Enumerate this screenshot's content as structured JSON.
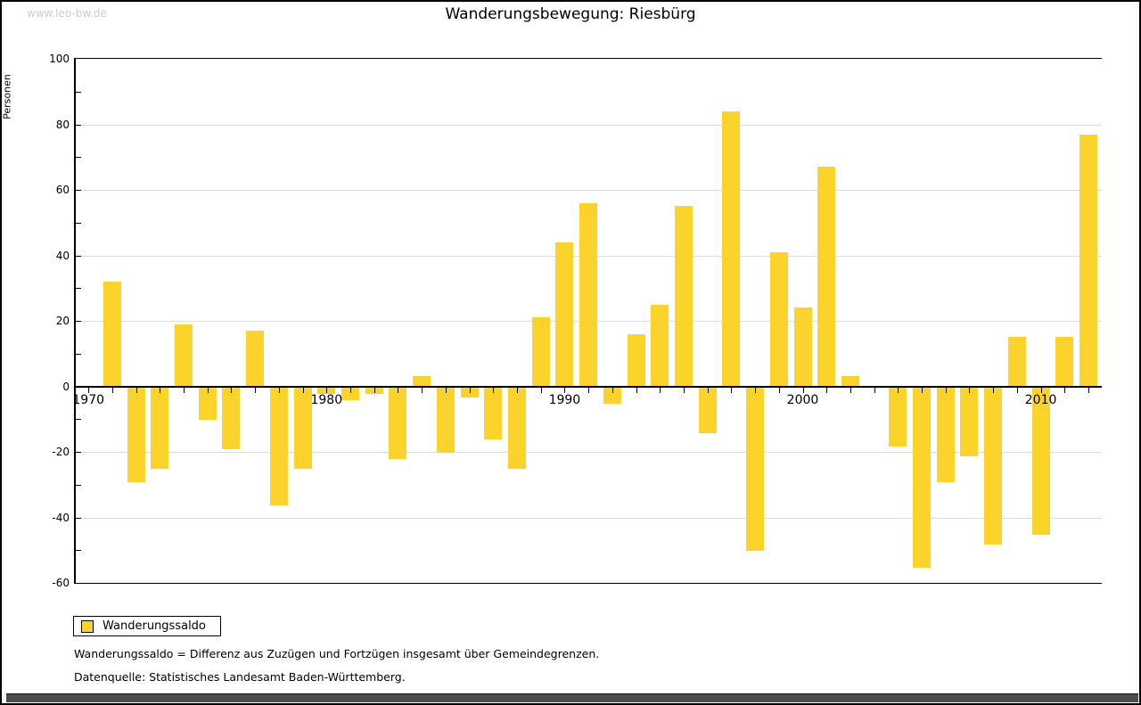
{
  "watermark": "www.leo-bw.de",
  "title": "Wanderungsbewegung: Riesbürg",
  "y_axis_label": "Personen",
  "legend": {
    "label": "Wanderungssaldo"
  },
  "footnotes": [
    "Wanderungssaldo = Differenz aus Zuzügen und Fortzügen insgesamt über Gemeindegrenzen.",
    "Datenquelle: Statistisches Landesamt Baden-Württemberg."
  ],
  "colors": {
    "bar": "#FBD32B",
    "grid": "#DCDCDC",
    "axis": "#000000",
    "watermark": "#CCCCCC",
    "bottom_bar": "#4D4D4D"
  },
  "chart_data": {
    "type": "bar",
    "title": "Wanderungsbewegung: Riesbürg",
    "xlabel": "",
    "ylabel": "Personen",
    "series_name": "Wanderungssaldo",
    "x": [
      1971,
      1972,
      1973,
      1974,
      1975,
      1976,
      1977,
      1978,
      1979,
      1980,
      1981,
      1982,
      1983,
      1984,
      1985,
      1986,
      1987,
      1988,
      1989,
      1990,
      1991,
      1992,
      1993,
      1994,
      1995,
      1996,
      1997,
      1998,
      1999,
      2000,
      2001,
      2002,
      2003,
      2004,
      2005,
      2006,
      2007,
      2008,
      2009,
      2010,
      2011,
      2012
    ],
    "values": [
      32,
      -29,
      -25,
      19,
      -10,
      -19,
      17,
      -36,
      -25,
      -2,
      -4,
      -2,
      -22,
      3,
      -20,
      -3,
      -16,
      -25,
      21,
      44,
      56,
      -5,
      16,
      25,
      55,
      -14,
      84,
      -50,
      41,
      24,
      67,
      3,
      0,
      -18,
      -55,
      -29,
      -21,
      -48,
      15,
      -45,
      15,
      77
    ],
    "ylim": [
      -60,
      100
    ],
    "y_major_ticks": [
      -60,
      -40,
      -20,
      0,
      20,
      40,
      60,
      80,
      100
    ],
    "y_minor_tick_step": 10,
    "x_axis_range": [
      1970,
      2012
    ],
    "x_tick_labels": [
      "1970",
      "1980",
      "1990",
      "2000",
      "2010"
    ],
    "grid": true,
    "bar_color": "#FBD32B",
    "legend_position": "bottom-left"
  }
}
